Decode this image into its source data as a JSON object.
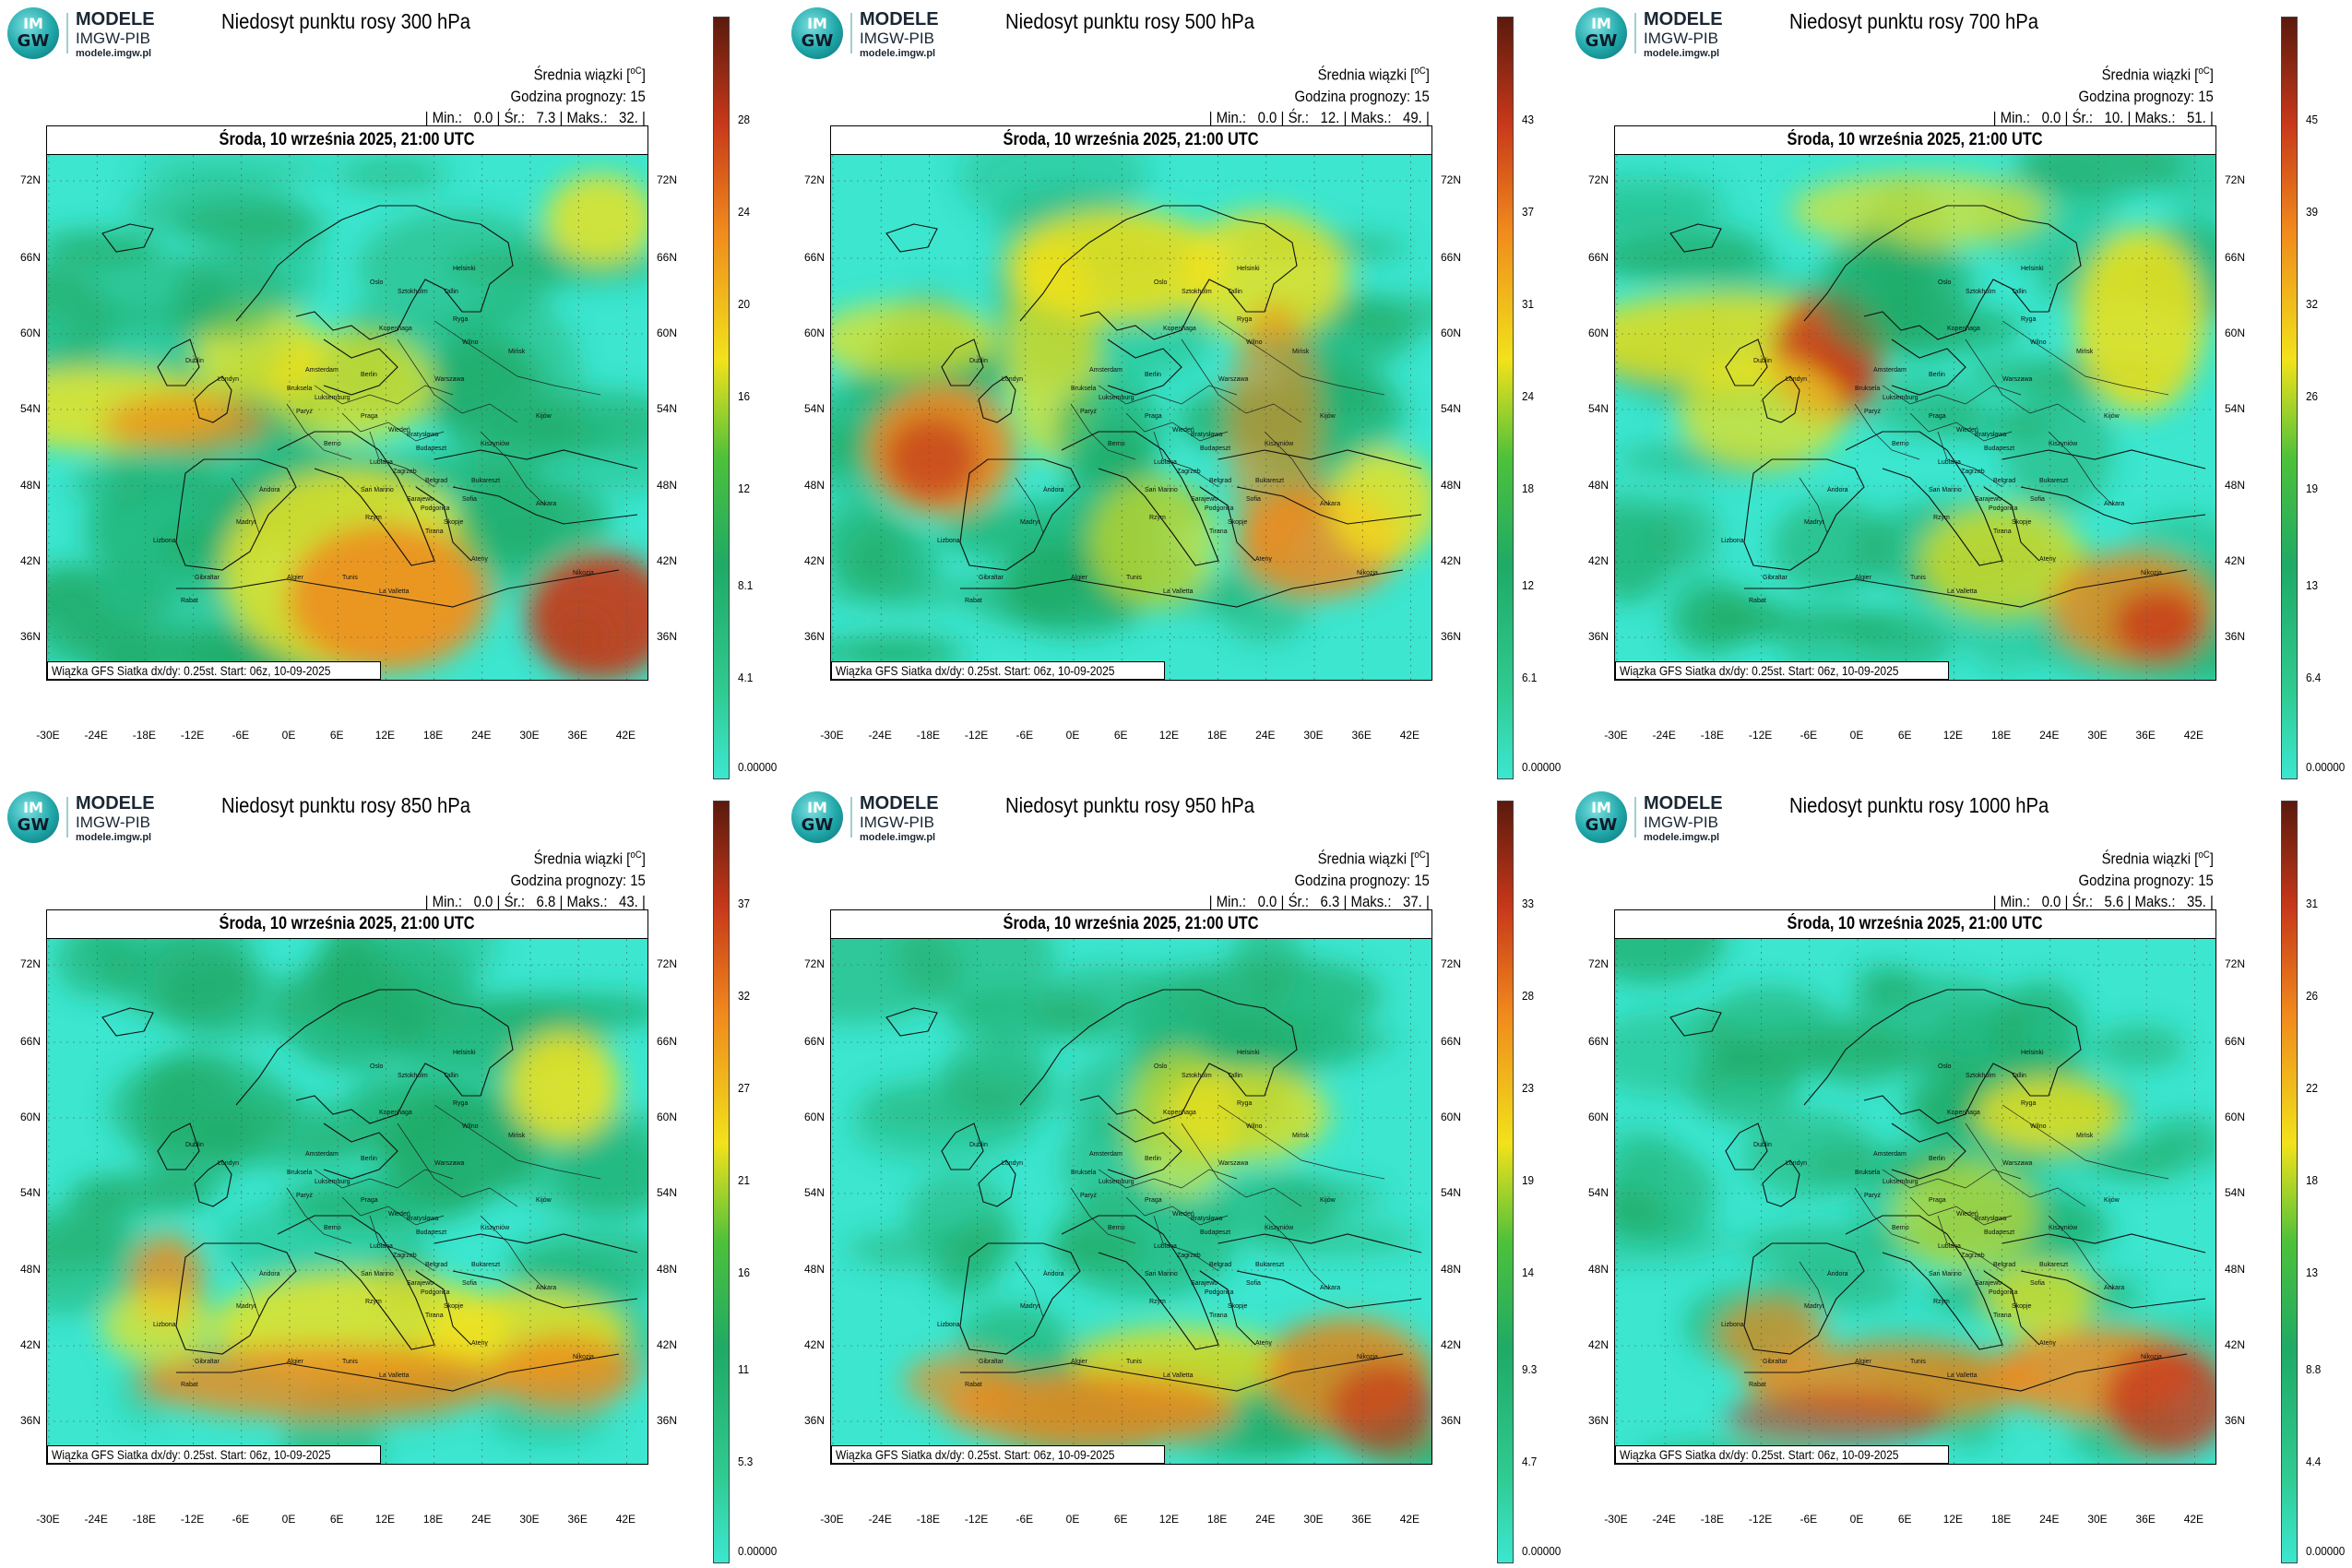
{
  "logo": {
    "title": "MODELE",
    "subtitle": "IMGW-PIB",
    "url": "modele.imgw.pl",
    "emblem_top": "IM",
    "emblem_bottom": "GW"
  },
  "common": {
    "stat_title": "Średnia wiązki [",
    "stat_unit": "oC",
    "stat_close": "]",
    "forecast_hour": "Godzina prognozy: 15",
    "date": "Środa, 10 września 2025, 21:00 UTC",
    "footnote": "Wiązka GFS Siatka dx/dy: 0.25st. Start: 06z, 10-09-2025",
    "min_label": "| Min.:",
    "avg_label": "| Śr.:",
    "max_label": "| Maks.:",
    "lat_labels": [
      "72N",
      "66N",
      "60N",
      "54N",
      "48N",
      "42N",
      "36N"
    ],
    "lon_labels": [
      "-30E",
      "-24E",
      "-18E",
      "-12E",
      "-6E",
      "0E",
      "6E",
      "12E",
      "18E",
      "24E",
      "30E",
      "36E",
      "42E"
    ],
    "cities": [
      "Helsinki",
      "Oslo",
      "Sztokholm",
      "Tallin",
      "Ryga",
      "Kopenhaga",
      "Wilno",
      "Mińsk",
      "Dublin",
      "Amsterdam",
      "Londyn",
      "Berlin",
      "Warszawa",
      "Bruksela",
      "Luksemburg",
      "Paryż",
      "Praga",
      "Kijów",
      "Wiedeń",
      "Bratysława",
      "Berno",
      "Budapeszt",
      "Kiszyniów",
      "Lublana",
      "Zagrzeb",
      "Belgrad",
      "Bukareszt",
      "Sarajewo",
      "Andora",
      "San Marino",
      "Podgorica",
      "Sofia",
      "Lizbona",
      "Madryt",
      "Rzym",
      "Skopje",
      "Tirana",
      "Ankara",
      "Ateny",
      "Gibraltar",
      "Algier",
      "Tunis",
      "La Valletta",
      "Rabat",
      "Nikozja"
    ]
  },
  "panels": [
    {
      "title": "Niedosyt punktu rosy 300 hPa",
      "min": "0.0",
      "avg": "7.3",
      "max": "32.",
      "colorbar_labels": [
        "28",
        "24",
        "20",
        "16",
        "12",
        "8.1",
        "4.1",
        "0.00000"
      ]
    },
    {
      "title": "Niedosyt punktu rosy 500 hPa",
      "min": "0.0",
      "avg": "12.",
      "max": "49.",
      "colorbar_labels": [
        "43",
        "37",
        "31",
        "24",
        "18",
        "12",
        "6.1",
        "0.00000"
      ]
    },
    {
      "title": "Niedosyt punktu rosy 700 hPa",
      "min": "0.0",
      "avg": "10.",
      "max": "51.",
      "colorbar_labels": [
        "45",
        "39",
        "32",
        "26",
        "19",
        "13",
        "6.4",
        "0.00000"
      ]
    },
    {
      "title": "Niedosyt punktu rosy 850 hPa",
      "min": "0.0",
      "avg": "6.8",
      "max": "43.",
      "colorbar_labels": [
        "37",
        "32",
        "27",
        "21",
        "16",
        "11",
        "5.3",
        "0.00000"
      ]
    },
    {
      "title": "Niedosyt punktu rosy 950 hPa",
      "min": "0.0",
      "avg": "6.3",
      "max": "37.",
      "colorbar_labels": [
        "33",
        "28",
        "23",
        "19",
        "14",
        "9.3",
        "4.7",
        "0.00000"
      ]
    },
    {
      "title": "Niedosyt punktu rosy 1000 hPa",
      "min": "0.0",
      "avg": "5.6",
      "max": "35.",
      "colorbar_labels": [
        "31",
        "26",
        "22",
        "18",
        "13",
        "8.8",
        "4.4",
        "0.00000"
      ]
    }
  ],
  "colors": {
    "cyan": "#3ce6cf",
    "green": "#1faa66",
    "yellow": "#f2e21b",
    "orange": "#f08a1c",
    "red": "#c8381a",
    "darkred": "#5b1a0d"
  }
}
